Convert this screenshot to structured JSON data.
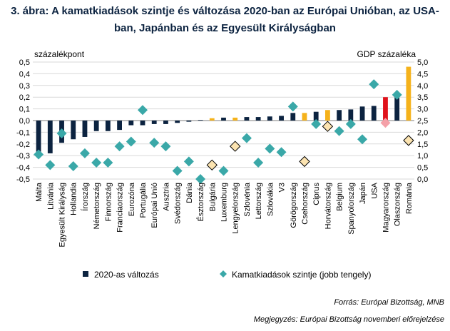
{
  "title": "3. ábra: A kamatkiadások szintje és változása 2020-ban az Európai Unióban, az USA-ban, Japánban és az Egyesült Királyságban",
  "source": "Forrás: Európai Bizottság, MNB",
  "note": "Megjegyzés: Európai Bizottság novemberi előrejelzése",
  "chart_data": {
    "type": "bar",
    "ylabel_left": "százalékpont",
    "ylabel_right": "GDP százaléka",
    "ylim_left": [
      -0.5,
      0.5
    ],
    "ylim_right": [
      0.0,
      5.0
    ],
    "yticks_left": [
      "-0,5",
      "-0,4",
      "-0,3",
      "-0,2",
      "-0,1",
      "0,0",
      "0,1",
      "0,2",
      "0,3",
      "0,4",
      "0,5"
    ],
    "yticks_right": [
      "0,0",
      "0,5",
      "1,0",
      "1,5",
      "2,0",
      "2,5",
      "3,0",
      "3,5",
      "4,0",
      "4,5",
      "5,0"
    ],
    "categories": [
      "Málta",
      "Litvánia",
      "Egyesült Királyság",
      "Hollandia",
      "Írország",
      "Németország",
      "Finnország",
      "Franciaország",
      "Eurozóna",
      "Portugália",
      "Európai Unió",
      "Ausztria",
      "Svédország",
      "Dánia",
      "Észtország",
      "Bulgária",
      "Luxemburg",
      "Lengyelország",
      "Szlovénia",
      "Lettország",
      "Szlovákia",
      "V3",
      "Görögország",
      "Csehország",
      "Ciprus",
      "Horvátország",
      "Belgium",
      "Spanyolország",
      "Japán",
      "USA",
      "Magyarország",
      "Olaszország",
      "Románia"
    ],
    "highlight_colors": {
      "default": "#0c2340",
      "v3": "#f5b21b",
      "hungary": "#e0121b",
      "marker": "#3aa8a8",
      "marker_highlight": "#fbe3b0"
    },
    "series": [
      {
        "name": "2020-as változás",
        "axis": "left",
        "values": [
          -0.27,
          -0.28,
          -0.19,
          -0.16,
          -0.14,
          -0.09,
          -0.09,
          -0.08,
          -0.04,
          -0.04,
          -0.03,
          -0.03,
          -0.02,
          -0.01,
          0.005,
          0.02,
          0.025,
          0.025,
          0.03,
          0.03,
          0.035,
          0.04,
          0.065,
          0.065,
          0.075,
          0.09,
          0.09,
          0.095,
          0.12,
          0.125,
          0.2,
          0.21,
          0.46
        ],
        "colors": [
          "#0c2340",
          "#0c2340",
          "#0c2340",
          "#0c2340",
          "#0c2340",
          "#0c2340",
          "#0c2340",
          "#0c2340",
          "#0c2340",
          "#0c2340",
          "#0c2340",
          "#0c2340",
          "#0c2340",
          "#0c2340",
          "#0c2340",
          "#f5b21b",
          "#0c2340",
          "#f5b21b",
          "#0c2340",
          "#0c2340",
          "#0c2340",
          "#0c2340",
          "#0c2340",
          "#f5b21b",
          "#0c2340",
          "#f5b21b",
          "#0c2340",
          "#0c2340",
          "#0c2340",
          "#0c2340",
          "#e0121b",
          "#0c2340",
          "#f5b21b"
        ]
      },
      {
        "name": "Kamatkiadások szintje (jobb tengely)",
        "axis": "right",
        "values": [
          1.05,
          0.6,
          1.95,
          0.55,
          1.1,
          0.7,
          0.7,
          1.4,
          1.6,
          2.95,
          1.55,
          1.4,
          0.35,
          0.75,
          0.0,
          0.6,
          0.35,
          1.4,
          1.75,
          0.7,
          1.3,
          1.15,
          3.1,
          0.75,
          2.35,
          2.25,
          2.05,
          2.35,
          1.7,
          4.05,
          2.4,
          3.6,
          1.65
        ],
        "highlighted": [
          false,
          false,
          false,
          false,
          false,
          false,
          false,
          false,
          false,
          false,
          false,
          false,
          false,
          false,
          false,
          true,
          false,
          true,
          false,
          false,
          false,
          false,
          false,
          true,
          false,
          true,
          false,
          false,
          false,
          false,
          true,
          false,
          true
        ]
      }
    ],
    "legend_placement": "bottom"
  }
}
